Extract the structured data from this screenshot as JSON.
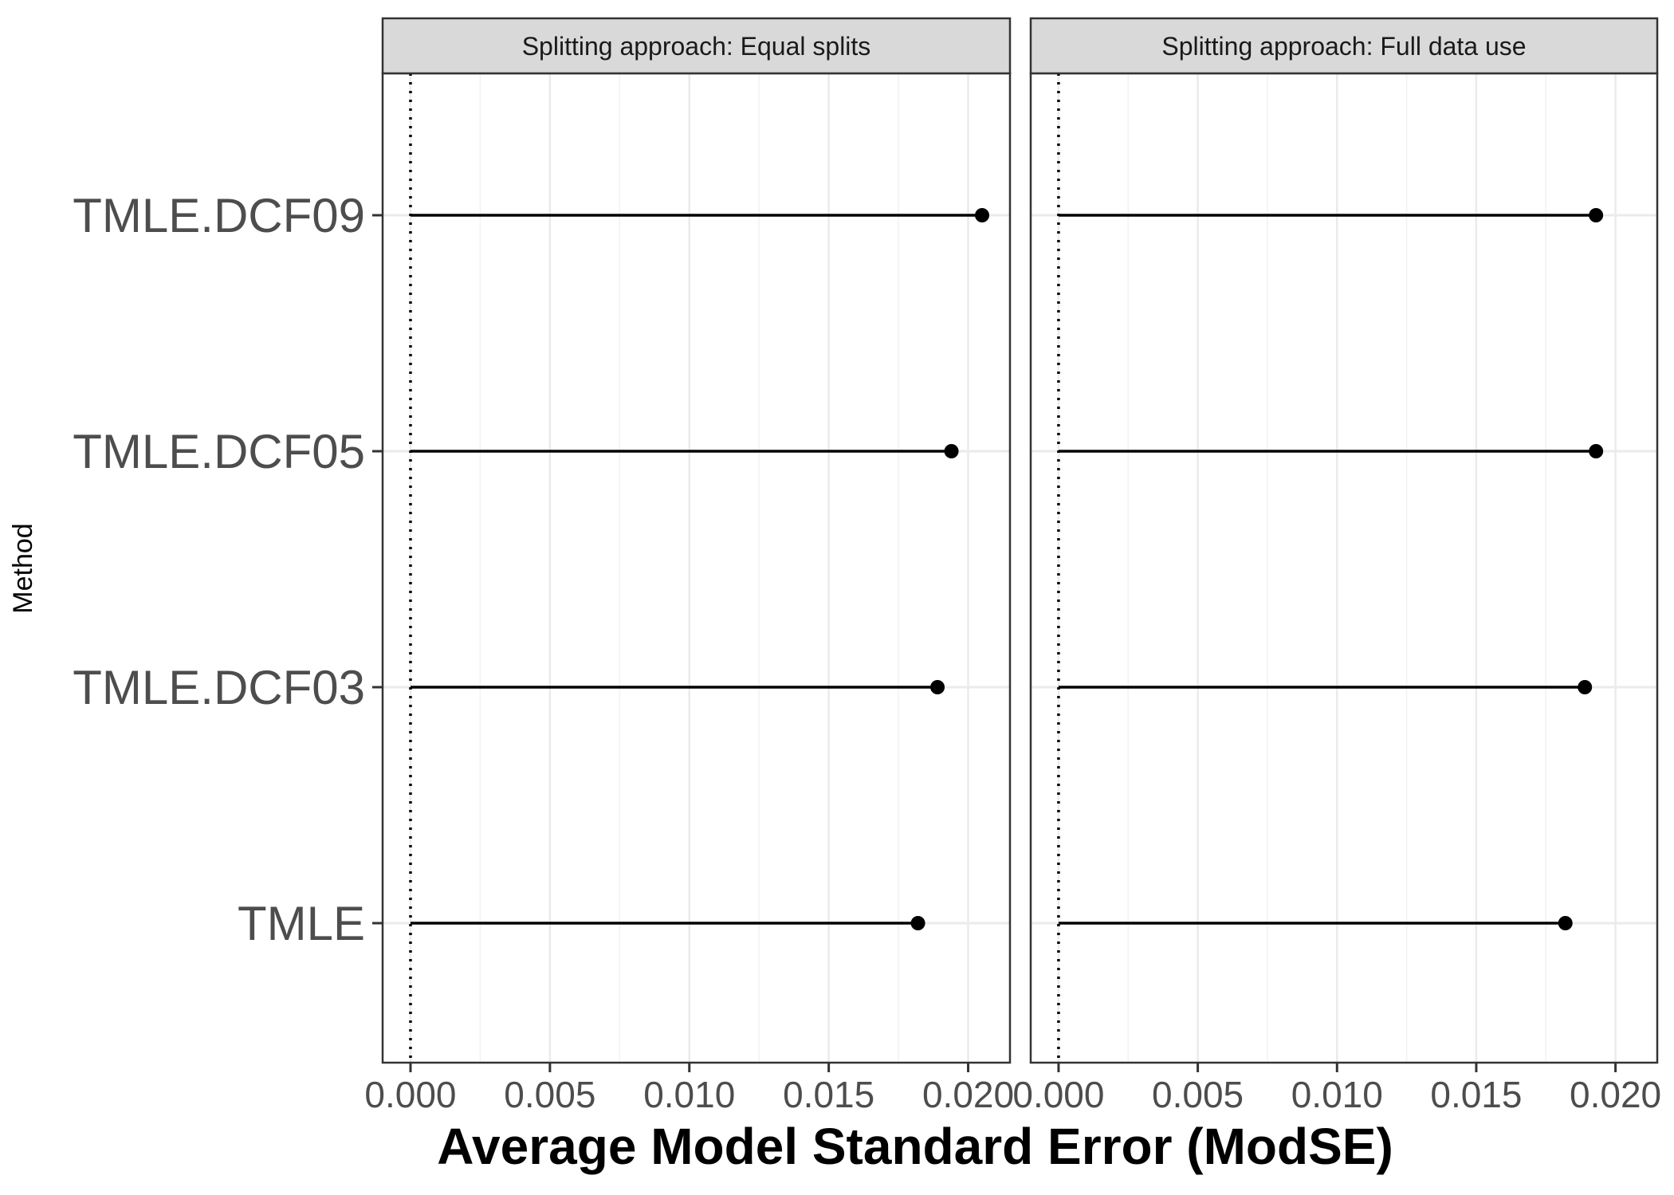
{
  "chart_data": {
    "type": "lollipop",
    "ylabel": "Method",
    "xlabel": "Average Model Standard Error (ModSE)",
    "categories": [
      "TMLE.DCF09",
      "TMLE.DCF05",
      "TMLE.DCF03",
      "TMLE"
    ],
    "xlim": [
      -0.001,
      0.0215
    ],
    "xticks": [
      "0.000",
      "0.005",
      "0.010",
      "0.015",
      "0.020"
    ],
    "xtick_values": [
      0.0,
      0.005,
      0.01,
      0.015,
      0.02
    ],
    "reference_line": 0,
    "grid": true,
    "panels": [
      {
        "strip": "Splitting approach: Equal splits",
        "values": {
          "TMLE.DCF09": 0.0205,
          "TMLE.DCF05": 0.0194,
          "TMLE.DCF03": 0.0189,
          "TMLE": 0.0182
        }
      },
      {
        "strip": "Splitting approach: Full data use",
        "values": {
          "TMLE.DCF09": 0.0193,
          "TMLE.DCF05": 0.0193,
          "TMLE.DCF03": 0.0189,
          "TMLE": 0.0182
        }
      }
    ],
    "colors": {
      "line": "#000000",
      "grid": "#ebebeb",
      "strip_fill": "#d9d9d9",
      "axis_text": "#4d4d4d"
    }
  }
}
